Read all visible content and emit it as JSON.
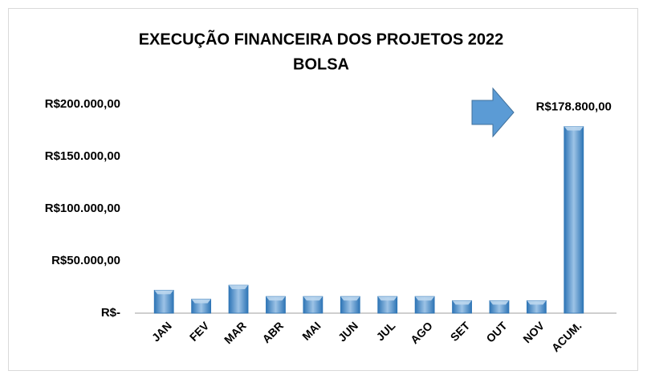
{
  "chart_data": {
    "type": "bar",
    "title": "EXECUÇÃO FINANCEIRA DOS PROJETOS 2022",
    "subtitle": "BOLSA",
    "categories": [
      "JAN",
      "FEV",
      "MAR",
      "ABR",
      "MAI",
      "JUN",
      "JUL",
      "AGO",
      "SET",
      "OUT",
      "NOV",
      "ACUM."
    ],
    "values": [
      22000,
      13400,
      26800,
      16000,
      16000,
      16000,
      16000,
      16000,
      12000,
      12000,
      12000,
      178800
    ],
    "value_labels": [
      null,
      null,
      null,
      null,
      null,
      null,
      null,
      null,
      null,
      null,
      null,
      "R$178.800,00"
    ],
    "color": "#5b9bd5",
    "ylim": [
      0,
      200000
    ],
    "yticks": [
      {
        "value": 0,
        "label": "R$-"
      },
      {
        "value": 50000,
        "label": "R$50.000,00"
      },
      {
        "value": 100000,
        "label": "R$100.000,00"
      },
      {
        "value": 150000,
        "label": "R$150.000,00"
      },
      {
        "value": 200000,
        "label": "R$200.000,00"
      }
    ],
    "grid": false
  }
}
